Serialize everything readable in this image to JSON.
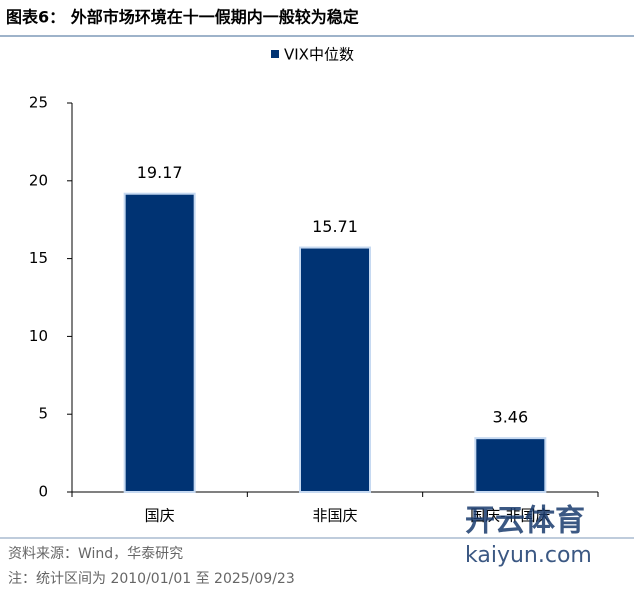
{
  "chart_data": {
    "type": "bar",
    "title": "图表6： 外部市场环境在十一假期内一般较为稳定",
    "categories": [
      "国庆",
      "非国庆",
      "国庆-非国庆"
    ],
    "series": [
      {
        "name": "VIX中位数",
        "color": "#003373",
        "values": [
          19.17,
          15.71,
          3.46
        ]
      }
    ],
    "ylim": [
      0,
      25
    ],
    "yticks": [
      0,
      5,
      10,
      15,
      20,
      25
    ],
    "legend": "top",
    "source": "资料来源：Wind，华泰研究",
    "note": "注：统计区间为 2010/01/01 至 2025/09/23",
    "watermark": [
      "开云体育",
      "kaiyun.com"
    ]
  }
}
